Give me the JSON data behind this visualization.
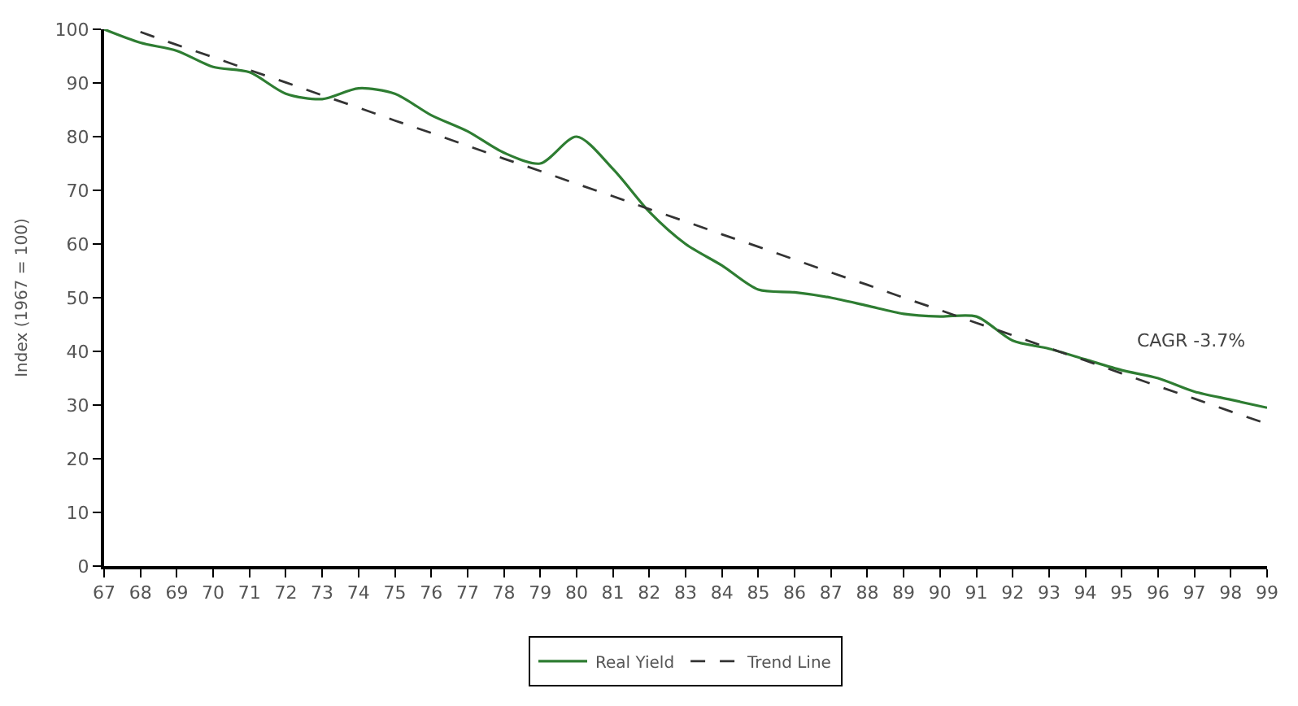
{
  "chart_data": {
    "type": "line",
    "ylabel": "Index (1967 = 100)",
    "categories": [
      "67",
      "68",
      "69",
      "70",
      "71",
      "72",
      "73",
      "74",
      "75",
      "76",
      "77",
      "78",
      "79",
      "80",
      "81",
      "82",
      "83",
      "84",
      "85",
      "86",
      "87",
      "88",
      "89",
      "90",
      "91",
      "92",
      "93",
      "94",
      "95",
      "96",
      "97",
      "98",
      "99"
    ],
    "series": [
      {
        "name": "Real Yield",
        "color": "#2e7d32",
        "line_style": "solid",
        "values": [
          100,
          97.5,
          96,
          93,
          92,
          88,
          87,
          89,
          88,
          84,
          81,
          77,
          75,
          80,
          74,
          66,
          60,
          56,
          51.5,
          51,
          50,
          48.5,
          47,
          46.5,
          46.5,
          42,
          40.5,
          38.5,
          36.5,
          35,
          32.5,
          31,
          29.5
        ]
      },
      {
        "name": "Trend Line",
        "color": "#333333",
        "line_style": "dashed",
        "values": [
          null,
          99.5,
          97.1,
          94.8,
          92.4,
          90.1,
          87.7,
          85.4,
          83,
          80.7,
          78.3,
          75.9,
          73.6,
          71.2,
          68.9,
          66.5,
          64.2,
          61.8,
          59.5,
          57.1,
          54.7,
          52.4,
          50,
          47.7,
          45.3,
          43,
          40.6,
          38.3,
          35.9,
          33.5,
          31.2,
          28.8,
          26.5
        ]
      }
    ],
    "annotations": [
      "CAGR -3.7%"
    ],
    "ylim": [
      0,
      100
    ],
    "yticks": [
      0,
      10,
      20,
      30,
      40,
      50,
      60,
      70,
      80,
      90,
      100
    ],
    "legend": "bottom",
    "marker": "none"
  }
}
